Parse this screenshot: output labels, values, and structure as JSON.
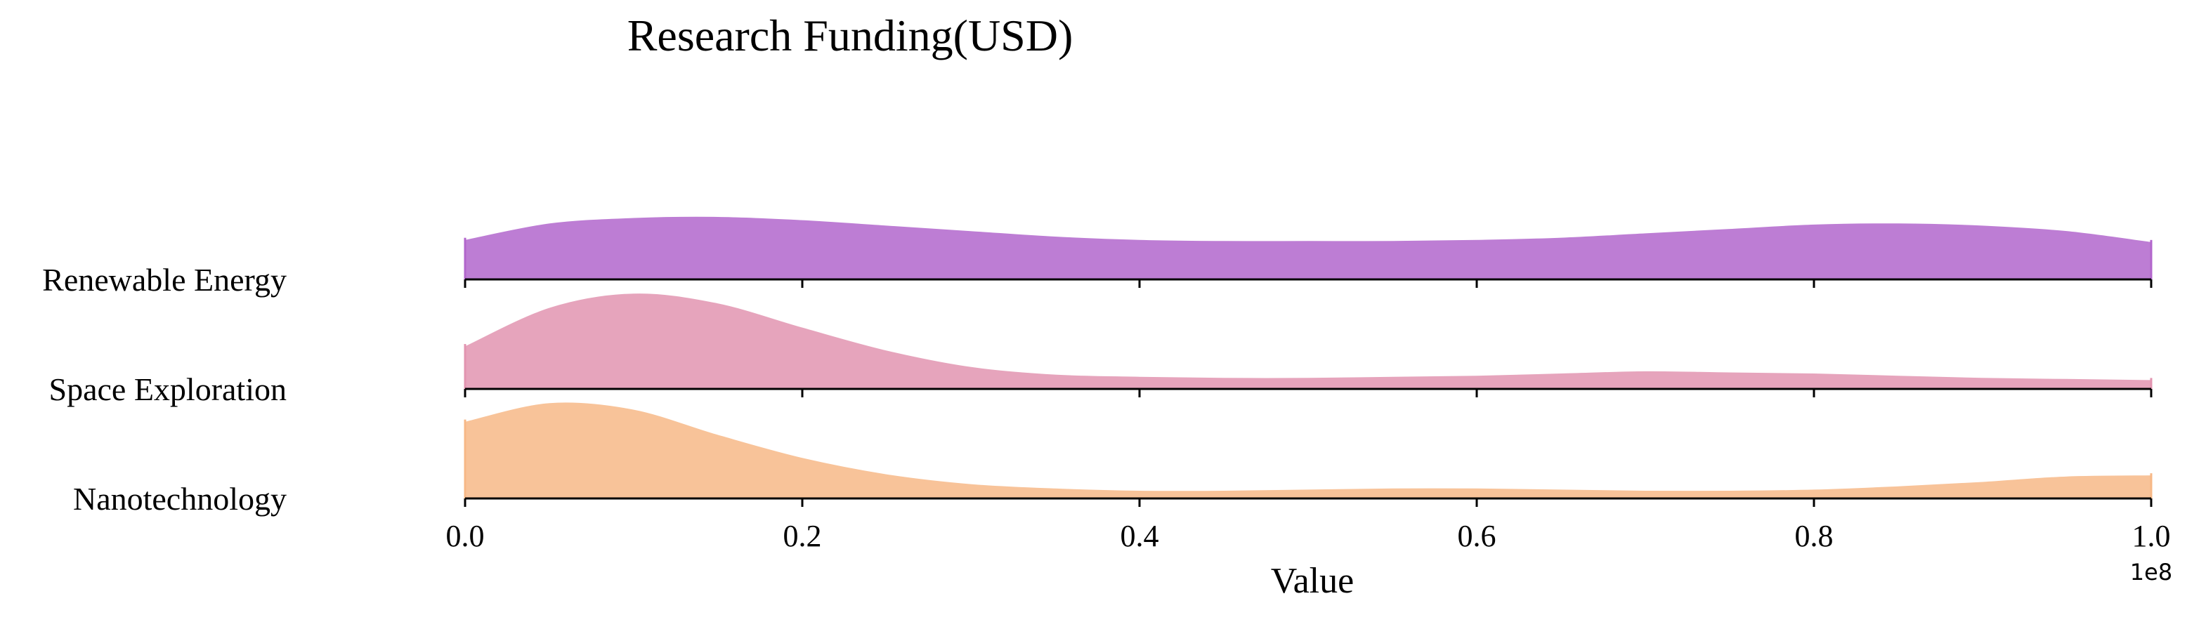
{
  "chart_data": {
    "type": "ridgeline",
    "title": "Research Funding(USD)",
    "xlabel": "Value",
    "x_offset_label": "1e8",
    "xlim": [
      0.0,
      1.0
    ],
    "x_ticks": [
      "0.0",
      "0.2",
      "0.4",
      "0.6",
      "0.8",
      "1.0"
    ],
    "grid": false,
    "legend": "none",
    "x": [
      0.0,
      0.05,
      0.1,
      0.15,
      0.2,
      0.25,
      0.3,
      0.35,
      0.4,
      0.45,
      0.5,
      0.55,
      0.6,
      0.65,
      0.7,
      0.75,
      0.8,
      0.85,
      0.9,
      0.95,
      1.0
    ],
    "series": [
      {
        "name": "Renewable Energy",
        "color": "#b266cc",
        "density": [
          0.38,
          0.53,
          0.58,
          0.59,
          0.56,
          0.51,
          0.46,
          0.41,
          0.38,
          0.37,
          0.37,
          0.37,
          0.38,
          0.4,
          0.44,
          0.48,
          0.52,
          0.53,
          0.51,
          0.46,
          0.36
        ]
      },
      {
        "name": "Space Exploration",
        "color": "#e294b0",
        "density": [
          0.41,
          0.76,
          0.89,
          0.8,
          0.58,
          0.37,
          0.22,
          0.15,
          0.13,
          0.12,
          0.12,
          0.13,
          0.14,
          0.16,
          0.18,
          0.17,
          0.16,
          0.14,
          0.12,
          0.11,
          0.1
        ]
      },
      {
        "name": "Nanotechnology",
        "color": "#f7b887",
        "density": [
          0.72,
          0.89,
          0.83,
          0.6,
          0.39,
          0.24,
          0.15,
          0.11,
          0.09,
          0.09,
          0.1,
          0.11,
          0.11,
          0.1,
          0.09,
          0.09,
          0.1,
          0.13,
          0.17,
          0.22,
          0.23
        ]
      }
    ]
  }
}
